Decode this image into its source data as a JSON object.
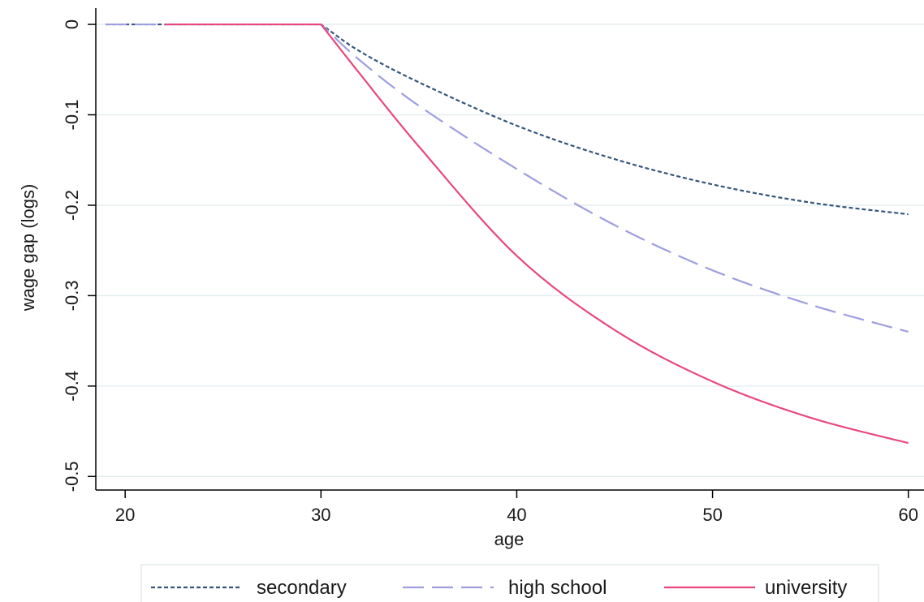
{
  "chart_data": {
    "type": "line",
    "xlabel": "age",
    "ylabel": "wage gap (logs)",
    "xlim": [
      18.5,
      60.8
    ],
    "ylim": [
      -0.515,
      0.018
    ],
    "x_ticks": [
      20,
      30,
      40,
      50,
      60
    ],
    "x_tick_labels": [
      "20",
      "30",
      "40",
      "50",
      "60"
    ],
    "y_ticks": [
      0,
      -0.1,
      -0.2,
      -0.3,
      -0.4,
      -0.5
    ],
    "y_tick_labels": [
      "0",
      "-0.1",
      "-0.2",
      "-0.3",
      "-0.4",
      "-0.5"
    ],
    "grid": "horizontal",
    "legend_position": "bottom",
    "series": [
      {
        "name": "secondary",
        "color": "#34567a",
        "dash": "dotted",
        "x": [
          19,
          25,
          30,
          32,
          35,
          40,
          45,
          50,
          55,
          60
        ],
        "y": [
          0,
          0,
          0,
          -0.03,
          -0.064,
          -0.112,
          -0.149,
          -0.177,
          -0.197,
          -0.21
        ]
      },
      {
        "name": "high school",
        "color": "#9e9ee0",
        "dash": "long-dash",
        "x": [
          19,
          25,
          30,
          32,
          35,
          40,
          45,
          50,
          55,
          60
        ],
        "y": [
          0,
          0,
          0,
          -0.04,
          -0.09,
          -0.16,
          -0.222,
          -0.272,
          -0.31,
          -0.34
        ]
      },
      {
        "name": "university",
        "color": "#e8487c",
        "dash": "solid",
        "x": [
          22,
          25,
          30,
          32,
          35,
          40,
          45,
          50,
          55,
          60
        ],
        "y": [
          0,
          0,
          0,
          -0.055,
          -0.135,
          -0.256,
          -0.338,
          -0.395,
          -0.435,
          -0.463
        ]
      }
    ]
  }
}
